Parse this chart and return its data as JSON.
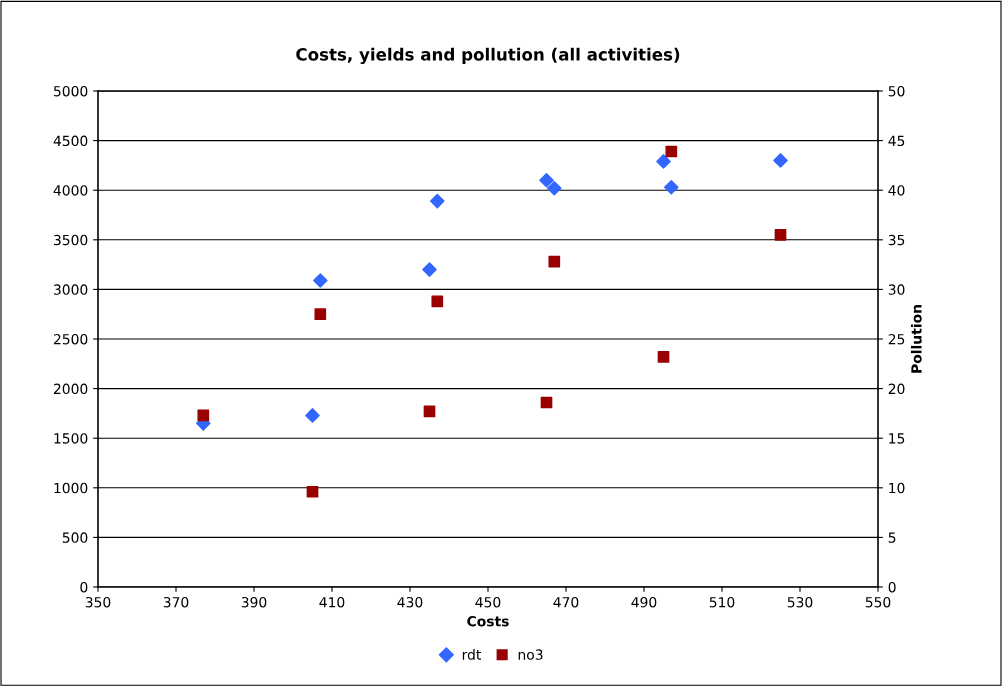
{
  "chart_data": {
    "type": "scatter",
    "title": "Costs, yields and pollution (all activities)",
    "xlabel": "Costs",
    "y2label": "Pollution",
    "xlim": [
      350,
      550
    ],
    "xticks": [
      350,
      370,
      390,
      410,
      430,
      450,
      470,
      490,
      510,
      530,
      550
    ],
    "ylim": [
      0,
      5000
    ],
    "yticks": [
      0,
      500,
      1000,
      1500,
      2000,
      2500,
      3000,
      3500,
      4000,
      4500,
      5000
    ],
    "y2lim": [
      0,
      50
    ],
    "y2ticks": [
      0,
      5,
      10,
      15,
      20,
      25,
      30,
      35,
      40,
      45,
      50
    ],
    "grid": "y",
    "legend": "bottom",
    "series": [
      {
        "name": "rdt",
        "color": "#3366ff",
        "marker": "diamond",
        "x": [
          377,
          405,
          407,
          435,
          437,
          465,
          467,
          495,
          497,
          525
        ],
        "values": [
          1650,
          1730,
          3090,
          3200,
          3890,
          4100,
          4020,
          4290,
          4030,
          4300
        ]
      },
      {
        "name": "no3",
        "color": "#990000",
        "marker": "square",
        "axis": "y2",
        "x": [
          377,
          405,
          407,
          435,
          437,
          465,
          467,
          495,
          497,
          525
        ],
        "values": [
          17.3,
          9.6,
          27.5,
          17.7,
          28.8,
          18.6,
          32.8,
          23.2,
          43.9,
          35.5
        ]
      }
    ]
  }
}
